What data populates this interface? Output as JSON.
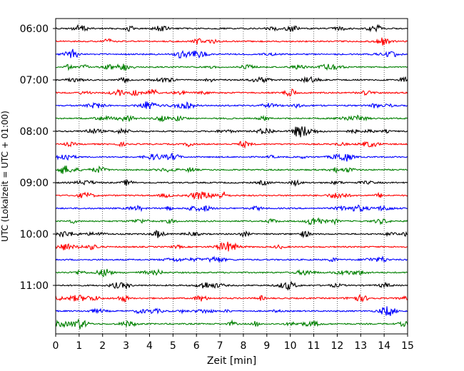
{
  "chart_data": {
    "type": "line",
    "xlabel": "Zeit  [min]",
    "ylabel": "UTC (Lokalzeit = UTC + 01:00)",
    "xlim": [
      0,
      15
    ],
    "x_ticks": [
      "0",
      "1",
      "2",
      "3",
      "4",
      "5",
      "6",
      "7",
      "8",
      "9",
      "10",
      "11",
      "12",
      "13",
      "14",
      "15"
    ],
    "y_ticks": [
      "06:00",
      "07:00",
      "08:00",
      "09:00",
      "10:00",
      "11:00"
    ],
    "grid": {
      "vertical": "dotted",
      "horizontal": false
    },
    "trace_colors": [
      "#000000",
      "#ff0000",
      "#0000ff",
      "#008000"
    ],
    "traces": [
      {
        "start": "06:00"
      },
      {
        "start": "06:15"
      },
      {
        "start": "06:30"
      },
      {
        "start": "06:45"
      },
      {
        "start": "07:00"
      },
      {
        "start": "07:15"
      },
      {
        "start": "07:30"
      },
      {
        "start": "07:45"
      },
      {
        "start": "08:00"
      },
      {
        "start": "08:15"
      },
      {
        "start": "08:30"
      },
      {
        "start": "08:45"
      },
      {
        "start": "09:00"
      },
      {
        "start": "09:15"
      },
      {
        "start": "09:30"
      },
      {
        "start": "09:45"
      },
      {
        "start": "10:00"
      },
      {
        "start": "10:15"
      },
      {
        "start": "10:30"
      },
      {
        "start": "10:45"
      },
      {
        "start": "11:00"
      },
      {
        "start": "11:15"
      },
      {
        "start": "11:30"
      },
      {
        "start": "11:45"
      }
    ]
  }
}
